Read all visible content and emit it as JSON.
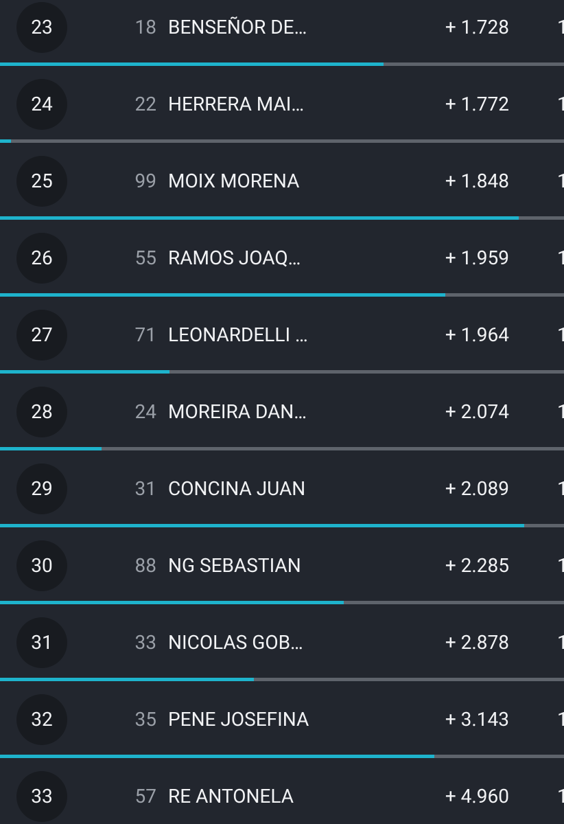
{
  "colors": {
    "background": "#22262e",
    "badge_background": "#181b20",
    "text": "#f2f3f5",
    "bib_text": "#9ba0a8",
    "bar_track": "#5e636b",
    "bar_fill": "#1eb3cc"
  },
  "rows": [
    {
      "position": "23",
      "bib": "18",
      "name": "BENSEÑOR DE…",
      "gap": "+ 1.728",
      "extra": "1",
      "progress": 0.68
    },
    {
      "position": "24",
      "bib": "22",
      "name": "HERRERA MAI…",
      "gap": "+ 1.772",
      "extra": "1",
      "progress": 0.02
    },
    {
      "position": "25",
      "bib": "99",
      "name": "MOIX MORENA",
      "gap": "+ 1.848",
      "extra": "1",
      "progress": 0.92
    },
    {
      "position": "26",
      "bib": "55",
      "name": "RAMOS  JOAQ…",
      "gap": "+ 1.959",
      "extra": "1",
      "progress": 0.79
    },
    {
      "position": "27",
      "bib": "71",
      "name": "LEONARDELLI …",
      "gap": "+ 1.964",
      "extra": "1",
      "progress": 0.3
    },
    {
      "position": "28",
      "bib": "24",
      "name": "MOREIRA DAN…",
      "gap": "+ 2.074",
      "extra": "1",
      "progress": 0.18
    },
    {
      "position": "29",
      "bib": "31",
      "name": "CONCINA JUAN",
      "gap": "+ 2.089",
      "extra": "1",
      "progress": 0.93
    },
    {
      "position": "30",
      "bib": "88",
      "name": "NG SEBASTIAN",
      "gap": "+ 2.285",
      "extra": "1",
      "progress": 0.61
    },
    {
      "position": "31",
      "bib": "33",
      "name": "NICOLAS GOB…",
      "gap": "+ 2.878",
      "extra": "1",
      "progress": 0.45
    },
    {
      "position": "32",
      "bib": "35",
      "name": "PENE JOSEFINA",
      "gap": "+ 3.143",
      "extra": "1",
      "progress": 0.77
    },
    {
      "position": "33",
      "bib": "57",
      "name": "RE ANTONELA",
      "gap": "+ 4.960",
      "extra": "1",
      "progress": null
    }
  ]
}
